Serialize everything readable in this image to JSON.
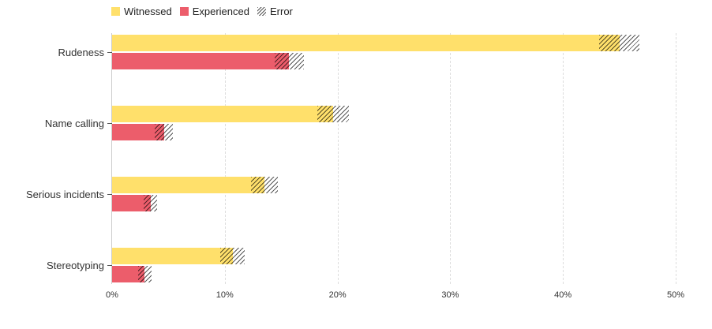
{
  "legend": {
    "witnessed": "Witnessed",
    "experienced": "Experienced",
    "error": "Error"
  },
  "colors": {
    "witnessed": "#FFE06B",
    "experienced": "#EC5D6B"
  },
  "chart_data": {
    "type": "bar",
    "orientation": "horizontal",
    "categories": [
      "Rudeness",
      "Name calling",
      "Serious incidents",
      "Stereotyping"
    ],
    "series": [
      {
        "name": "Witnessed",
        "values": [
          45.0,
          19.6,
          13.5,
          10.7
        ],
        "error": [
          1.8,
          1.4,
          1.2,
          1.1
        ]
      },
      {
        "name": "Experienced",
        "values": [
          15.7,
          4.6,
          3.4,
          2.9
        ],
        "error": [
          1.3,
          0.8,
          0.6,
          0.6
        ]
      }
    ],
    "xlim": [
      0,
      50
    ],
    "xticks": [
      "0%",
      "10%",
      "20%",
      "30%",
      "40%",
      "50%"
    ],
    "grid": true,
    "legend_position": "top-left"
  }
}
